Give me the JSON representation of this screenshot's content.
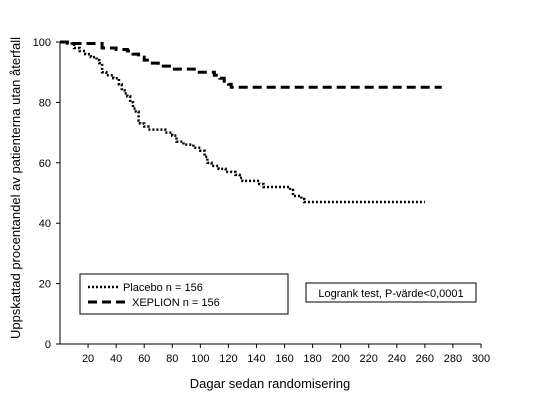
{
  "chart_data": {
    "type": "line",
    "xlabel": "Dagar sedan randomisering",
    "ylabel": "Uppskattad procentandel av patienterna utan återfall",
    "xlim": [
      0,
      300
    ],
    "ylim": [
      0,
      100
    ],
    "x_ticks": [
      20,
      40,
      60,
      80,
      100,
      120,
      140,
      160,
      180,
      200,
      220,
      240,
      260,
      280,
      300
    ],
    "y_ticks": [
      0,
      20,
      40,
      60,
      80,
      100
    ],
    "grid": false,
    "legend_position": "bottom-left",
    "annotation": "Logrank test, P-värde<0,0001",
    "series": [
      {
        "name": "Placebo n = 156",
        "style": "dotted",
        "color": "#000000",
        "step": true,
        "points": [
          [
            0,
            100
          ],
          [
            5,
            99.5
          ],
          [
            10,
            98
          ],
          [
            14,
            97
          ],
          [
            18,
            96
          ],
          [
            22,
            95
          ],
          [
            26,
            94
          ],
          [
            28,
            93
          ],
          [
            30,
            90
          ],
          [
            33,
            89
          ],
          [
            36,
            89
          ],
          [
            38,
            88
          ],
          [
            42,
            86
          ],
          [
            44,
            84
          ],
          [
            46,
            83
          ],
          [
            48,
            82
          ],
          [
            50,
            80
          ],
          [
            52,
            78
          ],
          [
            54,
            77
          ],
          [
            56,
            74
          ],
          [
            57,
            73
          ],
          [
            60,
            72
          ],
          [
            63,
            71
          ],
          [
            68,
            71
          ],
          [
            72,
            71
          ],
          [
            75,
            70
          ],
          [
            80,
            69
          ],
          [
            83,
            67
          ],
          [
            88,
            66
          ],
          [
            92,
            66
          ],
          [
            95,
            65
          ],
          [
            100,
            64
          ],
          [
            103,
            62
          ],
          [
            105,
            60
          ],
          [
            108,
            59
          ],
          [
            113,
            58
          ],
          [
            118,
            57
          ],
          [
            122,
            57
          ],
          [
            125,
            56
          ],
          [
            128,
            55
          ],
          [
            130,
            54
          ],
          [
            135,
            54
          ],
          [
            140,
            54
          ],
          [
            142,
            53
          ],
          [
            145,
            52
          ],
          [
            152,
            52
          ],
          [
            160,
            52
          ],
          [
            164,
            51
          ],
          [
            166,
            49
          ],
          [
            170,
            49
          ],
          [
            172,
            48
          ],
          [
            174,
            47
          ],
          [
            200,
            47
          ],
          [
            240,
            47
          ],
          [
            260,
            47
          ]
        ]
      },
      {
        "name": "XEPLION n = 156",
        "style": "dashed",
        "color": "#000000",
        "step": true,
        "points": [
          [
            0,
            100
          ],
          [
            8,
            99.5
          ],
          [
            28,
            99.5
          ],
          [
            30,
            98
          ],
          [
            40,
            97.5
          ],
          [
            48,
            97
          ],
          [
            52,
            96
          ],
          [
            56,
            95
          ],
          [
            60,
            94
          ],
          [
            64,
            93
          ],
          [
            70,
            92
          ],
          [
            78,
            91
          ],
          [
            96,
            91
          ],
          [
            98,
            90
          ],
          [
            108,
            90
          ],
          [
            110,
            89
          ],
          [
            114,
            88
          ],
          [
            117,
            87
          ],
          [
            120,
            86
          ],
          [
            122,
            85
          ],
          [
            140,
            85
          ],
          [
            200,
            85
          ],
          [
            272,
            85
          ]
        ]
      }
    ]
  }
}
